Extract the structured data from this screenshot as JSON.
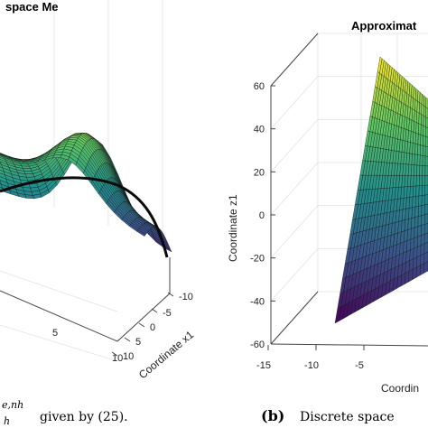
{
  "colormap": [
    "#440154",
    "#3b528b",
    "#21918c",
    "#5ec962",
    "#fde725"
  ],
  "chart_data": [
    {
      "type": "surface3d",
      "panel": "a",
      "title": "space Me",
      "xlabel": "Coordinate x1",
      "x_ticks": [
        "-10",
        "-5",
        "0",
        "5",
        "10"
      ],
      "y_ticks": [
        "5",
        "10"
      ],
      "surface": "saddle-shaped mesh, peaks on the near and right sides, dark ridge across the middle",
      "caption": {
        "superscript": "e,nh",
        "subscript": "h",
        "text": "given by (25)."
      }
    },
    {
      "type": "surface3d",
      "panel": "b",
      "title": "Approximat",
      "zlabel": "Coordinate z1",
      "xlabel": "Coordin",
      "z_ticks": [
        "60",
        "40",
        "20",
        "0",
        "-20",
        "-40",
        "-60"
      ],
      "x_ticks": [
        "-15",
        "-10",
        "-5"
      ],
      "zlim": [
        -60,
        60
      ],
      "surface": "tilted planar mesh rising from about -50 at the front-left corner to about 60 at the top-right",
      "caption": {
        "label": "(b)",
        "text": "Discrete space"
      }
    }
  ]
}
